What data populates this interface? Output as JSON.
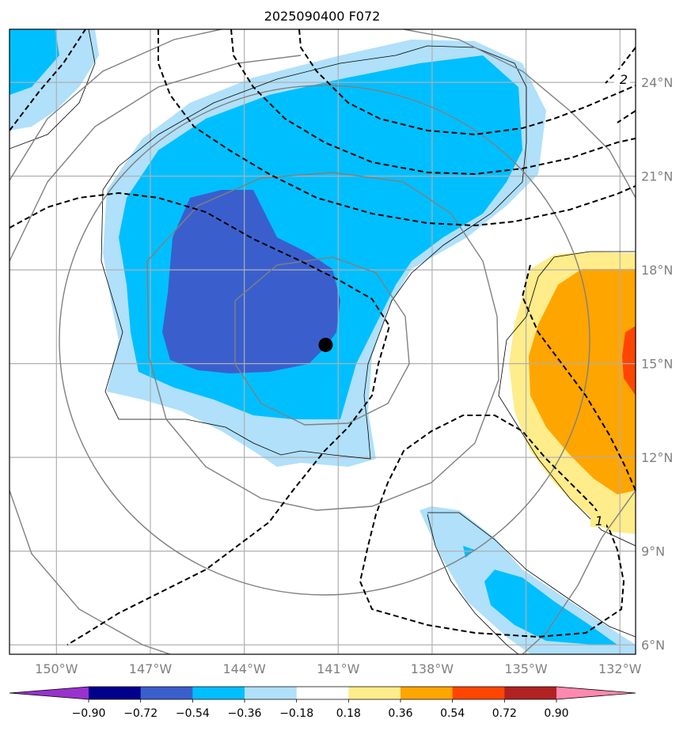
{
  "title": "2025090400 F072",
  "map": {
    "lon_labels": [
      "150°W",
      "147°W",
      "144°W",
      "141°W",
      "138°W",
      "135°W",
      "132°W"
    ],
    "lat_labels": [
      "24°N",
      "21°N",
      "18°N",
      "15°N",
      "12°N",
      "9°N",
      "6°N"
    ],
    "lon_range": [
      -151.5,
      -131.5
    ],
    "lat_range": [
      5.7,
      25.7
    ],
    "storm_center": {
      "lon": -141.4,
      "lat": 15.6
    },
    "contour_labels": [
      "2",
      "1"
    ],
    "gridlines": true
  },
  "colorbar": {
    "ticks": [
      "−0.90",
      "−0.72",
      "−0.54",
      "−0.36",
      "−0.18",
      "0.18",
      "0.36",
      "0.54",
      "0.72",
      "0.90"
    ],
    "colors": [
      "#9932cc",
      "#00008b",
      "#3a5fcd",
      "#00bfff",
      "#b0e0fa",
      "#ffffff",
      "#ffec8b",
      "#ffa500",
      "#ff4500",
      "#b22222",
      "#ff88b0"
    ],
    "extend": "both"
  }
}
